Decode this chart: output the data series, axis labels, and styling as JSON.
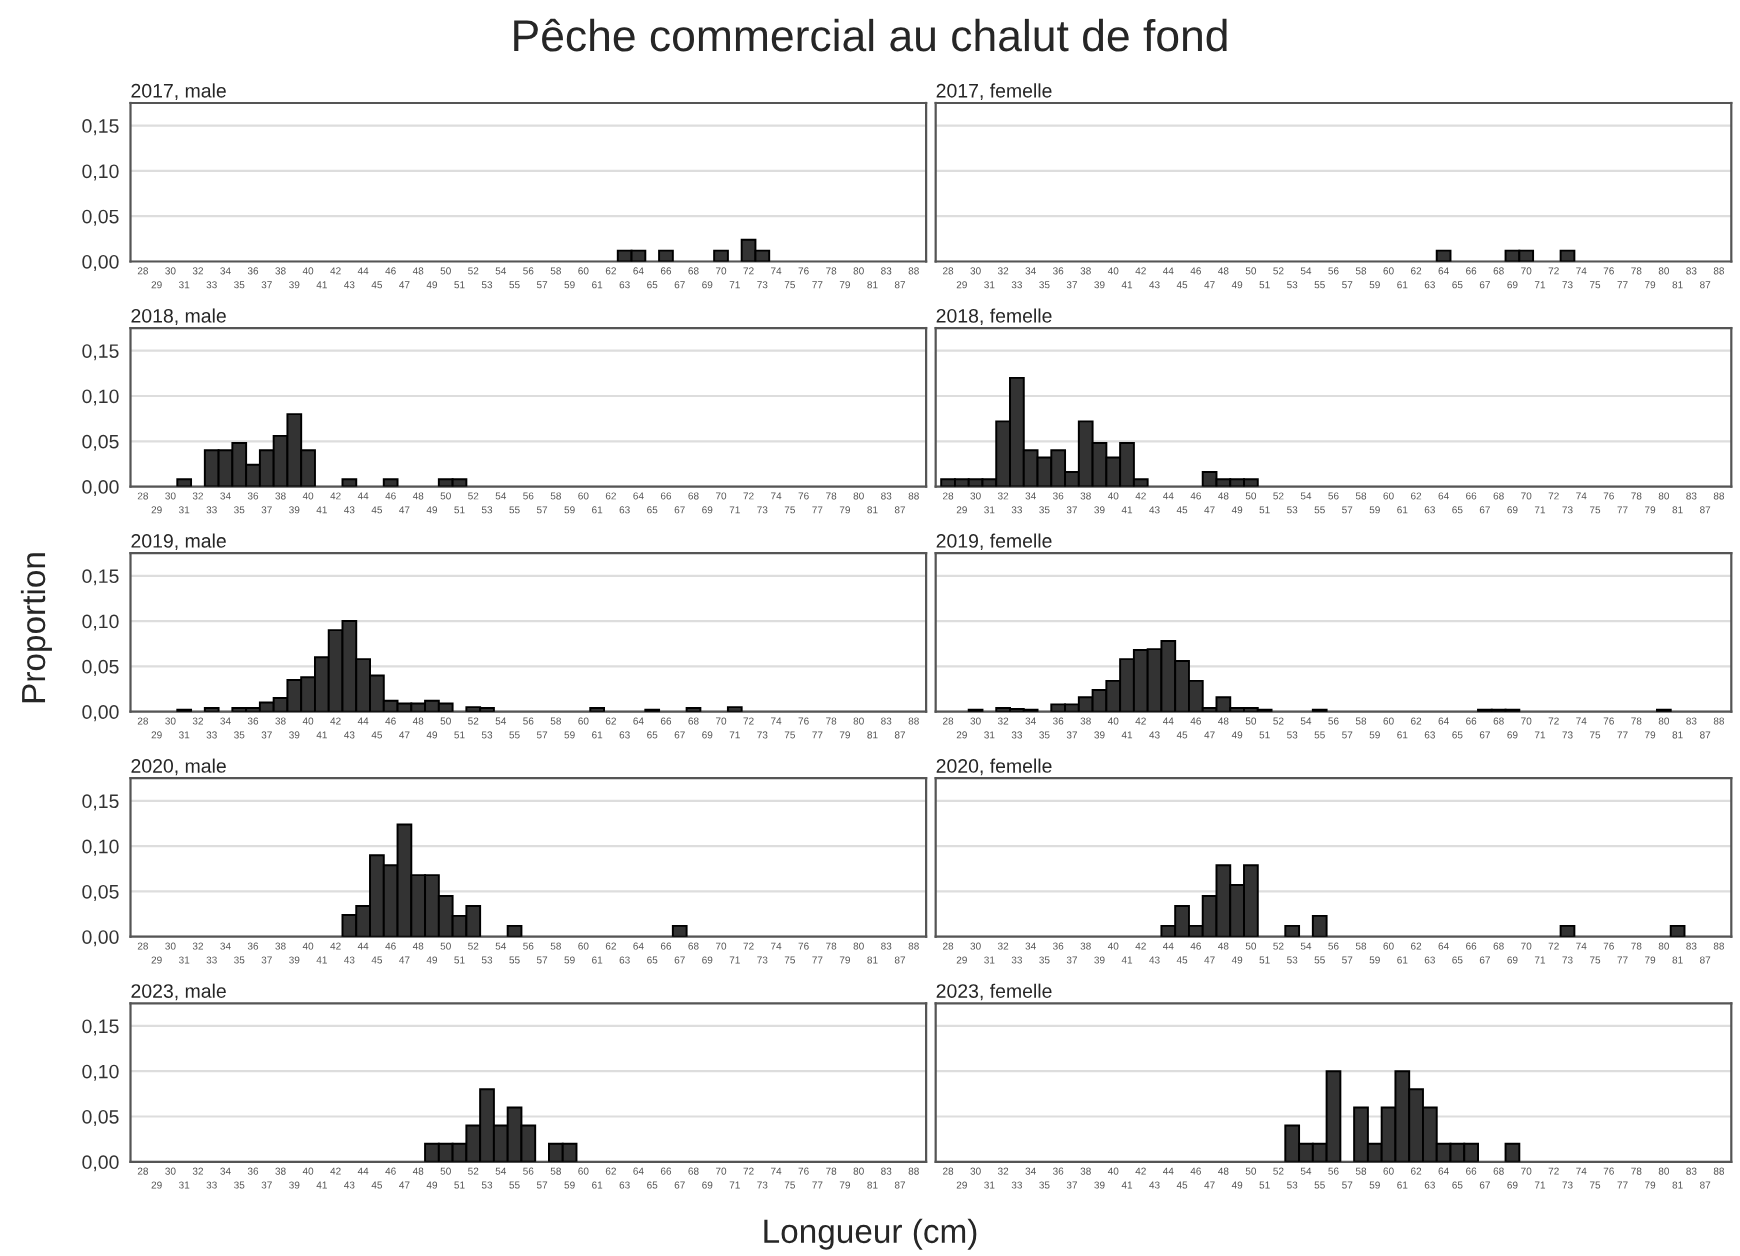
{
  "chart_data": [
    {
      "type": "bar",
      "title": "Pêche commercial au chalut de fond",
      "subtitle": "2017, male",
      "color": "#333333",
      "ylim": [
        0,
        0.175
      ],
      "yticks": [
        {
          "value": 0,
          "label": "0,00"
        },
        {
          "value": 0.05,
          "label": "0,05"
        },
        {
          "value": 0.1,
          "label": "0,10"
        },
        {
          "value": 0.15,
          "label": "0,15"
        }
      ],
      "grid": "y",
      "categories": [
        "28",
        "29",
        "30",
        "31",
        "32",
        "33",
        "34",
        "35",
        "36",
        "37",
        "38",
        "39",
        "40",
        "41",
        "42",
        "43",
        "44",
        "45",
        "46",
        "47",
        "48",
        "49",
        "50",
        "51",
        "52",
        "53",
        "54",
        "55",
        "56",
        "57",
        "58",
        "59",
        "60",
        "61",
        "62",
        "63",
        "64",
        "65",
        "66",
        "67",
        "68",
        "69",
        "70",
        "71",
        "72",
        "73",
        "74",
        "75",
        "76",
        "77",
        "78",
        "79",
        "80",
        "81",
        "83",
        "87",
        "88"
      ],
      "values": [
        null,
        null,
        null,
        null,
        null,
        null,
        null,
        null,
        null,
        null,
        null,
        null,
        null,
        null,
        null,
        null,
        null,
        null,
        null,
        null,
        null,
        null,
        null,
        null,
        null,
        null,
        null,
        null,
        null,
        null,
        null,
        null,
        null,
        null,
        null,
        0.012,
        0.012,
        null,
        0.012,
        null,
        null,
        null,
        0.012,
        null,
        0.024,
        0.012,
        null,
        null,
        null,
        null,
        null,
        null,
        null,
        null,
        null,
        null,
        null
      ]
    },
    {
      "type": "bar",
      "subtitle": "2017, femelle",
      "color": "#333333",
      "ylim": [
        0,
        0.175
      ],
      "yticks": [
        {
          "value": 0,
          "label": null
        },
        {
          "value": 0.05,
          "label": null
        },
        {
          "value": 0.1,
          "label": null
        },
        {
          "value": 0.15,
          "label": null
        }
      ],
      "grid": "y",
      "tick_labels": "x",
      "categories": [
        "28",
        "29",
        "30",
        "31",
        "32",
        "33",
        "34",
        "35",
        "36",
        "37",
        "38",
        "39",
        "40",
        "41",
        "42",
        "43",
        "44",
        "45",
        "46",
        "47",
        "48",
        "49",
        "50",
        "51",
        "52",
        "53",
        "54",
        "55",
        "56",
        "57",
        "58",
        "59",
        "60",
        "61",
        "62",
        "63",
        "64",
        "65",
        "66",
        "67",
        "68",
        "69",
        "70",
        "71",
        "72",
        "73",
        "74",
        "75",
        "76",
        "77",
        "78",
        "79",
        "80",
        "81",
        "83",
        "87",
        "88"
      ],
      "values": [
        null,
        null,
        null,
        null,
        null,
        null,
        null,
        null,
        null,
        null,
        null,
        null,
        null,
        null,
        null,
        null,
        null,
        null,
        null,
        null,
        null,
        null,
        null,
        null,
        null,
        null,
        null,
        null,
        null,
        null,
        null,
        null,
        null,
        null,
        null,
        null,
        0.012,
        null,
        null,
        null,
        null,
        0.012,
        0.012,
        null,
        null,
        0.012,
        null,
        null,
        null,
        null,
        null,
        null,
        null,
        null,
        null,
        null,
        null
      ]
    },
    {
      "type": "bar",
      "subtitle": "2018, male",
      "color": "#333333",
      "ylim": [
        0,
        0.175
      ],
      "yticks": [
        {
          "value": 0,
          "label": "0,00"
        },
        {
          "value": 0.05,
          "label": "0,05"
        },
        {
          "value": 0.1,
          "label": "0,10"
        },
        {
          "value": 0.15,
          "label": "0,15"
        }
      ],
      "grid": "y",
      "categories": [
        "28",
        "29",
        "30",
        "31",
        "32",
        "33",
        "34",
        "35",
        "36",
        "37",
        "38",
        "39",
        "40",
        "41",
        "42",
        "43",
        "44",
        "45",
        "46",
        "47",
        "48",
        "49",
        "50",
        "51",
        "52",
        "53",
        "54",
        "55",
        "56",
        "57",
        "58",
        "59",
        "60",
        "61",
        "62",
        "63",
        "64",
        "65",
        "66",
        "67",
        "68",
        "69",
        "70",
        "71",
        "72",
        "73",
        "74",
        "75",
        "76",
        "77",
        "78",
        "79",
        "80",
        "81",
        "83",
        "87",
        "88"
      ],
      "values": [
        null,
        null,
        null,
        0.008,
        null,
        0.04,
        0.04,
        0.048,
        0.024,
        0.04,
        0.056,
        0.08,
        0.04,
        null,
        null,
        0.008,
        null,
        null,
        0.008,
        null,
        null,
        null,
        0.008,
        0.008,
        null,
        null,
        null,
        null,
        null,
        null,
        null,
        null,
        null,
        null,
        null,
        null,
        null,
        null,
        null,
        null,
        null,
        null,
        null,
        null,
        null,
        null,
        null,
        null,
        null,
        null,
        null,
        null,
        null,
        null,
        null,
        null,
        null
      ]
    },
    {
      "type": "bar",
      "subtitle": "2018, femelle",
      "color": "#333333",
      "ylim": [
        0,
        0.175
      ],
      "yticks": [
        {
          "value": 0,
          "label": null
        },
        {
          "value": 0.05,
          "label": null
        },
        {
          "value": 0.1,
          "label": null
        },
        {
          "value": 0.15,
          "label": null
        }
      ],
      "grid": "y",
      "tick_labels": "x",
      "categories": [
        "28",
        "29",
        "30",
        "31",
        "32",
        "33",
        "34",
        "35",
        "36",
        "37",
        "38",
        "39",
        "40",
        "41",
        "42",
        "43",
        "44",
        "45",
        "46",
        "47",
        "48",
        "49",
        "50",
        "51",
        "52",
        "53",
        "54",
        "55",
        "56",
        "57",
        "58",
        "59",
        "60",
        "61",
        "62",
        "63",
        "64",
        "65",
        "66",
        "67",
        "68",
        "69",
        "70",
        "71",
        "72",
        "73",
        "74",
        "75",
        "76",
        "77",
        "78",
        "79",
        "80",
        "81",
        "83",
        "87",
        "88"
      ],
      "values": [
        0.008,
        0.008,
        0.008,
        0.008,
        0.072,
        0.12,
        0.04,
        0.032,
        0.04,
        0.016,
        0.072,
        0.048,
        0.032,
        0.048,
        0.008,
        null,
        null,
        null,
        null,
        0.016,
        0.008,
        0.008,
        0.008,
        null,
        null,
        null,
        null,
        null,
        null,
        null,
        null,
        null,
        null,
        null,
        null,
        null,
        null,
        null,
        null,
        null,
        null,
        null,
        null,
        null,
        null,
        null,
        null,
        null,
        null,
        null,
        null,
        null,
        null,
        null,
        null,
        null,
        null
      ]
    },
    {
      "type": "bar",
      "subtitle": "2019, male",
      "ylabel": "Proportion",
      "color": "#333333",
      "ylim": [
        0,
        0.175
      ],
      "yticks": [
        {
          "value": 0,
          "label": "0,00"
        },
        {
          "value": 0.05,
          "label": "0,05"
        },
        {
          "value": 0.1,
          "label": "0,10"
        },
        {
          "value": 0.15,
          "label": "0,15"
        }
      ],
      "grid": "y",
      "categories": [
        "28",
        "29",
        "30",
        "31",
        "32",
        "33",
        "34",
        "35",
        "36",
        "37",
        "38",
        "39",
        "40",
        "41",
        "42",
        "43",
        "44",
        "45",
        "46",
        "47",
        "48",
        "49",
        "50",
        "51",
        "52",
        "53",
        "54",
        "55",
        "56",
        "57",
        "58",
        "59",
        "60",
        "61",
        "62",
        "63",
        "64",
        "65",
        "66",
        "67",
        "68",
        "69",
        "70",
        "71",
        "72",
        "73",
        "74",
        "75",
        "76",
        "77",
        "78",
        "79",
        "80",
        "81",
        "83",
        "87",
        "88"
      ],
      "values": [
        null,
        null,
        null,
        0.002,
        null,
        0.004,
        null,
        0.004,
        0.004,
        0.01,
        0.015,
        0.035,
        0.038,
        0.06,
        0.09,
        0.1,
        0.058,
        0.04,
        0.012,
        0.009,
        0.009,
        0.012,
        0.009,
        null,
        0.005,
        0.004,
        null,
        null,
        null,
        null,
        null,
        null,
        null,
        0.004,
        null,
        null,
        null,
        0.002,
        null,
        null,
        0.004,
        null,
        null,
        0.005,
        null,
        null,
        null,
        null,
        null,
        null,
        null,
        null,
        null,
        null,
        null,
        null,
        null
      ]
    },
    {
      "type": "bar",
      "subtitle": "2019, femelle",
      "color": "#333333",
      "ylim": [
        0,
        0.175
      ],
      "yticks": [
        {
          "value": 0,
          "label": null
        },
        {
          "value": 0.05,
          "label": null
        },
        {
          "value": 0.1,
          "label": null
        },
        {
          "value": 0.15,
          "label": null
        }
      ],
      "grid": "y",
      "tick_labels": "x",
      "categories": [
        "28",
        "29",
        "30",
        "31",
        "32",
        "33",
        "34",
        "35",
        "36",
        "37",
        "38",
        "39",
        "40",
        "41",
        "42",
        "43",
        "44",
        "45",
        "46",
        "47",
        "48",
        "49",
        "50",
        "51",
        "52",
        "53",
        "54",
        "55",
        "56",
        "57",
        "58",
        "59",
        "60",
        "61",
        "62",
        "63",
        "64",
        "65",
        "66",
        "67",
        "68",
        "69",
        "70",
        "71",
        "72",
        "73",
        "74",
        "75",
        "76",
        "77",
        "78",
        "79",
        "80",
        "81",
        "83",
        "87",
        "88"
      ],
      "values": [
        null,
        null,
        0.002,
        null,
        0.004,
        0.003,
        0.002,
        null,
        0.008,
        0.008,
        0.016,
        0.024,
        0.034,
        0.058,
        0.068,
        0.069,
        0.078,
        0.056,
        0.034,
        0.004,
        0.016,
        0.004,
        0.004,
        0.002,
        null,
        null,
        null,
        0.002,
        null,
        null,
        null,
        null,
        null,
        null,
        null,
        null,
        null,
        null,
        null,
        0.002,
        0.002,
        0.002,
        null,
        null,
        null,
        null,
        null,
        null,
        null,
        null,
        null,
        null,
        0.002,
        null,
        null,
        null,
        null
      ]
    },
    {
      "type": "bar",
      "subtitle": "2020, male",
      "color": "#333333",
      "ylim": [
        0,
        0.175
      ],
      "yticks": [
        {
          "value": 0,
          "label": "0,00"
        },
        {
          "value": 0.05,
          "label": "0,05"
        },
        {
          "value": 0.1,
          "label": "0,10"
        },
        {
          "value": 0.15,
          "label": "0,15"
        }
      ],
      "grid": "y",
      "categories": [
        "28",
        "29",
        "30",
        "31",
        "32",
        "33",
        "34",
        "35",
        "36",
        "37",
        "38",
        "39",
        "40",
        "41",
        "42",
        "43",
        "44",
        "45",
        "46",
        "47",
        "48",
        "49",
        "50",
        "51",
        "52",
        "53",
        "54",
        "55",
        "56",
        "57",
        "58",
        "59",
        "60",
        "61",
        "62",
        "63",
        "64",
        "65",
        "66",
        "67",
        "68",
        "69",
        "70",
        "71",
        "72",
        "73",
        "74",
        "75",
        "76",
        "77",
        "78",
        "79",
        "80",
        "81",
        "83",
        "87",
        "88"
      ],
      "values": [
        null,
        null,
        null,
        null,
        null,
        null,
        null,
        null,
        null,
        null,
        null,
        null,
        null,
        null,
        null,
        0.024,
        0.034,
        0.09,
        0.079,
        0.124,
        0.068,
        0.068,
        0.045,
        0.023,
        0.034,
        null,
        null,
        0.012,
        null,
        null,
        null,
        null,
        null,
        null,
        null,
        null,
        null,
        null,
        null,
        0.012,
        null,
        null,
        null,
        null,
        null,
        null,
        null,
        null,
        null,
        null,
        null,
        null,
        null,
        null,
        null,
        null,
        null
      ]
    },
    {
      "type": "bar",
      "subtitle": "2020, femelle",
      "color": "#333333",
      "ylim": [
        0,
        0.175
      ],
      "yticks": [
        {
          "value": 0,
          "label": null
        },
        {
          "value": 0.05,
          "label": null
        },
        {
          "value": 0.1,
          "label": null
        },
        {
          "value": 0.15,
          "label": null
        }
      ],
      "grid": "y",
      "tick_labels": "x",
      "categories": [
        "28",
        "29",
        "30",
        "31",
        "32",
        "33",
        "34",
        "35",
        "36",
        "37",
        "38",
        "39",
        "40",
        "41",
        "42",
        "43",
        "44",
        "45",
        "46",
        "47",
        "48",
        "49",
        "50",
        "51",
        "52",
        "53",
        "54",
        "55",
        "56",
        "57",
        "58",
        "59",
        "60",
        "61",
        "62",
        "63",
        "64",
        "65",
        "66",
        "67",
        "68",
        "69",
        "70",
        "71",
        "72",
        "73",
        "74",
        "75",
        "76",
        "77",
        "78",
        "79",
        "80",
        "81",
        "83",
        "87",
        "88"
      ],
      "values": [
        null,
        null,
        null,
        null,
        null,
        null,
        null,
        null,
        null,
        null,
        null,
        null,
        null,
        null,
        null,
        null,
        0.012,
        0.034,
        0.012,
        0.045,
        0.079,
        0.057,
        0.079,
        null,
        null,
        0.012,
        null,
        0.023,
        null,
        null,
        null,
        null,
        null,
        null,
        null,
        null,
        null,
        null,
        null,
        null,
        null,
        null,
        null,
        null,
        null,
        0.012,
        null,
        null,
        null,
        null,
        null,
        null,
        null,
        0.012,
        null,
        null,
        null
      ]
    },
    {
      "type": "bar",
      "subtitle": "2023, male",
      "xlabel": "Longueur (cm)",
      "color": "#333333",
      "ylim": [
        0,
        0.175
      ],
      "yticks": [
        {
          "value": 0,
          "label": "0,00"
        },
        {
          "value": 0.05,
          "label": "0,05"
        },
        {
          "value": 0.1,
          "label": "0,10"
        },
        {
          "value": 0.15,
          "label": "0,15"
        }
      ],
      "grid": "y",
      "categories": [
        "28",
        "29",
        "30",
        "31",
        "32",
        "33",
        "34",
        "35",
        "36",
        "37",
        "38",
        "39",
        "40",
        "41",
        "42",
        "43",
        "44",
        "45",
        "46",
        "47",
        "48",
        "49",
        "50",
        "51",
        "52",
        "53",
        "54",
        "55",
        "56",
        "57",
        "58",
        "59",
        "60",
        "61",
        "62",
        "63",
        "64",
        "65",
        "66",
        "67",
        "68",
        "69",
        "70",
        "71",
        "72",
        "73",
        "74",
        "75",
        "76",
        "77",
        "78",
        "79",
        "80",
        "81",
        "83",
        "87",
        "88"
      ],
      "values": [
        null,
        null,
        null,
        null,
        null,
        null,
        null,
        null,
        null,
        null,
        null,
        null,
        null,
        null,
        null,
        null,
        null,
        null,
        null,
        null,
        null,
        0.02,
        0.02,
        0.02,
        0.04,
        0.08,
        0.04,
        0.06,
        0.04,
        null,
        0.02,
        0.02,
        null,
        null,
        null,
        null,
        null,
        null,
        null,
        null,
        null,
        null,
        null,
        null,
        null,
        null,
        null,
        null,
        null,
        null,
        null,
        null,
        null,
        null,
        null,
        null,
        null
      ]
    },
    {
      "type": "bar",
      "subtitle": "2023, femelle",
      "color": "#333333",
      "ylim": [
        0,
        0.175
      ],
      "yticks": [
        {
          "value": 0,
          "label": null
        },
        {
          "value": 0.05,
          "label": null
        },
        {
          "value": 0.1,
          "label": null
        },
        {
          "value": 0.15,
          "label": null
        }
      ],
      "grid": "y",
      "tick_labels": "x",
      "categories": [
        "28",
        "29",
        "30",
        "31",
        "32",
        "33",
        "34",
        "35",
        "36",
        "37",
        "38",
        "39",
        "40",
        "41",
        "42",
        "43",
        "44",
        "45",
        "46",
        "47",
        "48",
        "49",
        "50",
        "51",
        "52",
        "53",
        "54",
        "55",
        "56",
        "57",
        "58",
        "59",
        "60",
        "61",
        "62",
        "63",
        "64",
        "65",
        "66",
        "67",
        "68",
        "69",
        "70",
        "71",
        "72",
        "73",
        "74",
        "75",
        "76",
        "77",
        "78",
        "79",
        "80",
        "81",
        "83",
        "87",
        "88"
      ],
      "values": [
        null,
        null,
        null,
        null,
        null,
        null,
        null,
        null,
        null,
        null,
        null,
        null,
        null,
        null,
        null,
        null,
        null,
        null,
        null,
        null,
        null,
        null,
        null,
        null,
        null,
        0.04,
        0.02,
        0.02,
        0.1,
        null,
        0.06,
        0.02,
        0.06,
        0.1,
        0.08,
        0.06,
        0.02,
        0.02,
        0.02,
        null,
        null,
        0.02,
        null,
        null,
        null,
        null,
        null,
        null,
        null,
        null,
        null,
        null,
        null,
        null,
        null,
        null,
        null
      ]
    }
  ]
}
